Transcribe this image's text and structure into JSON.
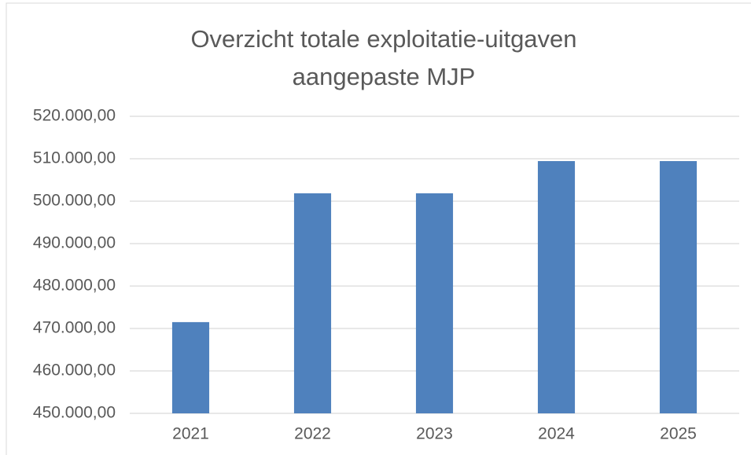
{
  "chart_data": {
    "type": "bar",
    "title": [
      "Overzicht totale exploitatie-uitgaven",
      "aangepaste MJP"
    ],
    "categories": [
      "2021",
      "2022",
      "2023",
      "2024",
      "2025"
    ],
    "values": [
      471500,
      501850,
      501850,
      509450,
      509450
    ],
    "color": "#4f81bd",
    "ylim": [
      450000,
      520000
    ],
    "yticks": [
      {
        "value": 450000,
        "label": "450.000,00"
      },
      {
        "value": 460000,
        "label": "460.000,00"
      },
      {
        "value": 470000,
        "label": "470.000,00"
      },
      {
        "value": 480000,
        "label": "480.000,00"
      },
      {
        "value": 490000,
        "label": "490.000,00"
      },
      {
        "value": 500000,
        "label": "500.000,00"
      },
      {
        "value": 510000,
        "label": "510.000,00"
      },
      {
        "value": 520000,
        "label": "520.000,00"
      }
    ],
    "grid": true
  }
}
